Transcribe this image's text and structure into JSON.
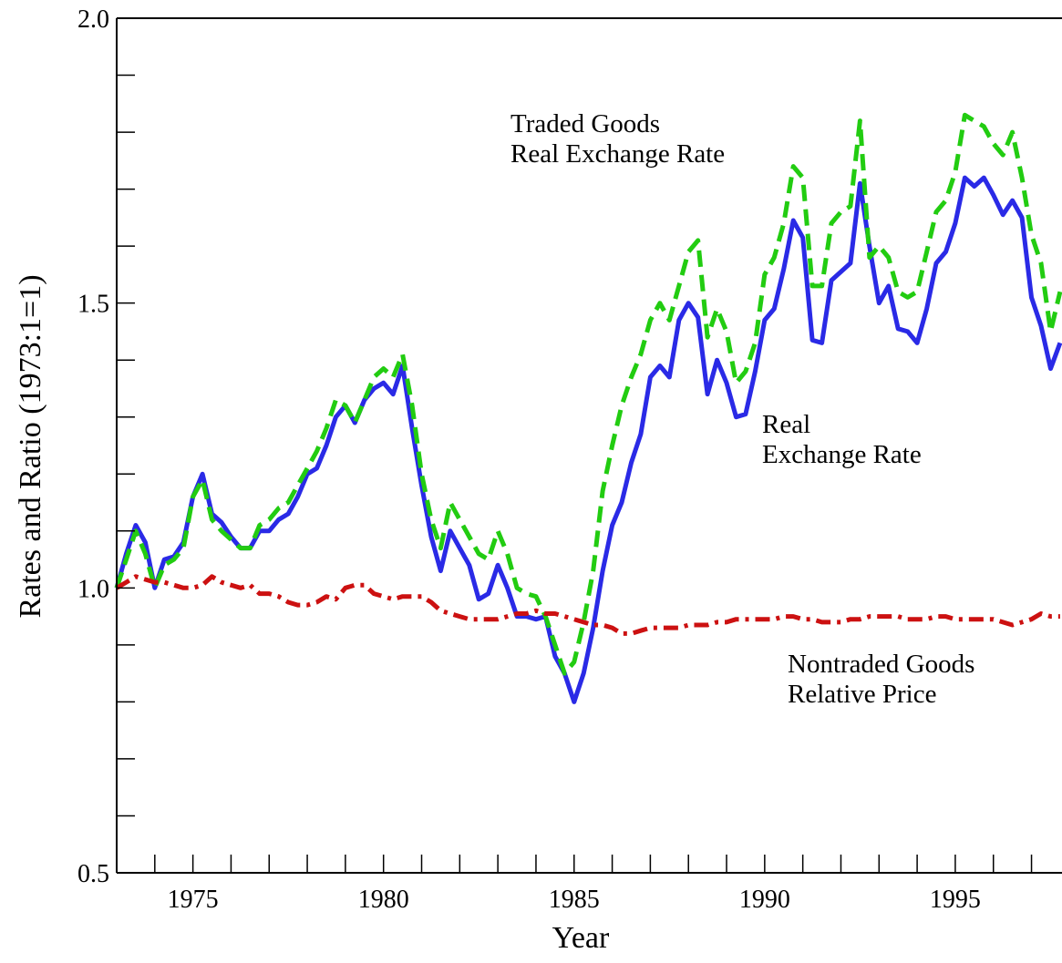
{
  "chart_data": {
    "type": "line",
    "xlabel": "Year",
    "ylabel": "Rates and Ratio (1973:1=1)",
    "x": [
      1973,
      1973.25,
      1973.5,
      1973.75,
      1974,
      1974.25,
      1974.5,
      1974.75,
      1975,
      1975.25,
      1975.5,
      1975.75,
      1976,
      1976.25,
      1976.5,
      1976.75,
      1977,
      1977.25,
      1977.5,
      1977.75,
      1978,
      1978.25,
      1978.5,
      1978.75,
      1979,
      1979.25,
      1979.5,
      1979.75,
      1980,
      1980.25,
      1980.5,
      1980.75,
      1981,
      1981.25,
      1981.5,
      1981.75,
      1982,
      1982.25,
      1982.5,
      1982.75,
      1983,
      1983.25,
      1983.5,
      1983.75,
      1984,
      1984.25,
      1984.5,
      1984.75,
      1985,
      1985.25,
      1985.5,
      1985.75,
      1986,
      1986.25,
      1986.5,
      1986.75,
      1987,
      1987.25,
      1987.5,
      1987.75,
      1988,
      1988.25,
      1988.5,
      1988.75,
      1989,
      1989.25,
      1989.5,
      1989.75,
      1990,
      1990.25,
      1990.5,
      1990.75,
      1991,
      1991.25,
      1991.5,
      1991.75,
      1992,
      1992.25,
      1992.5,
      1992.75,
      1993,
      1993.25,
      1993.5,
      1993.75,
      1994,
      1994.25,
      1994.5,
      1994.75,
      1995,
      1995.25,
      1995.5,
      1995.75,
      1996,
      1996.25,
      1996.5,
      1996.75,
      1997,
      1997.25,
      1997.5,
      1997.75
    ],
    "series": [
      {
        "color": "#2a2ae6",
        "dash": "solid",
        "values": [
          1.0,
          1.06,
          1.11,
          1.08,
          1.0,
          1.05,
          1.055,
          1.08,
          1.16,
          1.2,
          1.13,
          1.115,
          1.09,
          1.07,
          1.07,
          1.1,
          1.1,
          1.12,
          1.13,
          1.16,
          1.2,
          1.21,
          1.25,
          1.3,
          1.32,
          1.29,
          1.33,
          1.35,
          1.36,
          1.34,
          1.39,
          1.28,
          1.18,
          1.09,
          1.03,
          1.1,
          1.07,
          1.04,
          0.98,
          0.99,
          1.04,
          1.0,
          0.95,
          0.95,
          0.945,
          0.95,
          0.88,
          0.85,
          0.8,
          0.85,
          0.93,
          1.03,
          1.11,
          1.15,
          1.22,
          1.27,
          1.37,
          1.39,
          1.37,
          1.47,
          1.5,
          1.475,
          1.34,
          1.4,
          1.36,
          1.3,
          1.305,
          1.38,
          1.47,
          1.49,
          1.56,
          1.645,
          1.615,
          1.435,
          1.43,
          1.54,
          1.555,
          1.57,
          1.71,
          1.6,
          1.5,
          1.53,
          1.455,
          1.45,
          1.43,
          1.49,
          1.57,
          1.59,
          1.64,
          1.72,
          1.705,
          1.72,
          1.69,
          1.655,
          1.68,
          1.65,
          1.51,
          1.46,
          1.385,
          1.43
        ]
      },
      {
        "color": "#22cc11",
        "dash": "dashed",
        "values": [
          1.0,
          1.05,
          1.1,
          1.06,
          1.0,
          1.04,
          1.05,
          1.07,
          1.16,
          1.19,
          1.12,
          1.1,
          1.085,
          1.07,
          1.07,
          1.11,
          1.12,
          1.14,
          1.15,
          1.18,
          1.21,
          1.24,
          1.28,
          1.33,
          1.32,
          1.29,
          1.33,
          1.37,
          1.385,
          1.37,
          1.41,
          1.32,
          1.2,
          1.12,
          1.07,
          1.15,
          1.12,
          1.09,
          1.06,
          1.05,
          1.1,
          1.06,
          1.0,
          0.99,
          0.985,
          0.95,
          0.9,
          0.85,
          0.87,
          0.94,
          1.03,
          1.17,
          1.25,
          1.32,
          1.37,
          1.41,
          1.47,
          1.5,
          1.47,
          1.53,
          1.59,
          1.61,
          1.44,
          1.49,
          1.45,
          1.36,
          1.38,
          1.43,
          1.55,
          1.58,
          1.64,
          1.74,
          1.72,
          1.53,
          1.53,
          1.64,
          1.66,
          1.67,
          1.82,
          1.58,
          1.6,
          1.58,
          1.52,
          1.51,
          1.52,
          1.59,
          1.66,
          1.68,
          1.73,
          1.83,
          1.82,
          1.81,
          1.78,
          1.76,
          1.8,
          1.72,
          1.62,
          1.57,
          1.45,
          1.52
        ]
      },
      {
        "color": "#cc1111",
        "dash": "dashdot",
        "values": [
          1.0,
          1.01,
          1.02,
          1.015,
          1.01,
          1.01,
          1.005,
          1.0,
          1.0,
          1.005,
          1.02,
          1.01,
          1.005,
          1.0,
          1.005,
          0.99,
          0.99,
          0.985,
          0.975,
          0.97,
          0.97,
          0.975,
          0.985,
          0.98,
          1.0,
          1.005,
          1.005,
          0.99,
          0.985,
          0.98,
          0.985,
          0.985,
          0.985,
          0.975,
          0.96,
          0.955,
          0.95,
          0.945,
          0.945,
          0.945,
          0.945,
          0.95,
          0.955,
          0.955,
          0.96,
          0.955,
          0.955,
          0.95,
          0.945,
          0.94,
          0.935,
          0.935,
          0.93,
          0.92,
          0.92,
          0.925,
          0.93,
          0.93,
          0.93,
          0.93,
          0.935,
          0.935,
          0.935,
          0.94,
          0.94,
          0.945,
          0.945,
          0.945,
          0.945,
          0.945,
          0.95,
          0.95,
          0.945,
          0.945,
          0.94,
          0.94,
          0.94,
          0.945,
          0.945,
          0.95,
          0.95,
          0.95,
          0.95,
          0.945,
          0.945,
          0.945,
          0.95,
          0.95,
          0.945,
          0.945,
          0.945,
          0.945,
          0.945,
          0.94,
          0.935,
          0.94,
          0.945,
          0.955,
          0.95,
          0.95
        ]
      }
    ],
    "annotations": [
      [
        "Traded Goods",
        "Real Exchange Rate"
      ],
      [
        "Real",
        "Exchange Rate"
      ],
      [
        "Nontraded Goods",
        "Relative Price"
      ]
    ],
    "xlim": [
      1973,
      1997.8
    ],
    "ylim": [
      0.5,
      2.0
    ],
    "xticks": [
      1975,
      1980,
      1985,
      1990,
      1995
    ],
    "xminorticks": [
      1974,
      1976,
      1977,
      1978,
      1979,
      1981,
      1982,
      1983,
      1984,
      1986,
      1987,
      1988,
      1989,
      1991,
      1992,
      1993,
      1994,
      1996,
      1997
    ],
    "yticks": [
      {
        "value": 0.5,
        "label": "0.5"
      },
      {
        "value": 1.0,
        "label": "1.0"
      },
      {
        "value": 1.5,
        "label": "1.5"
      },
      {
        "value": 2.0,
        "label": "2.0"
      }
    ],
    "yminorticks": [
      0.6,
      0.7,
      0.8,
      0.9,
      1.1,
      1.2,
      1.3,
      1.4,
      1.6,
      1.7,
      1.8,
      1.9
    ],
    "grid": false
  }
}
